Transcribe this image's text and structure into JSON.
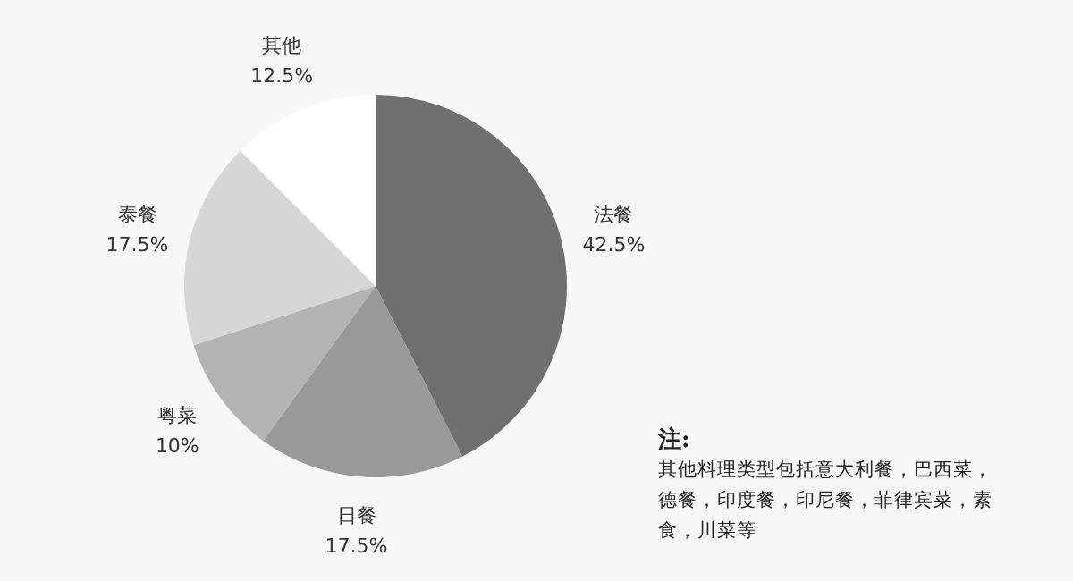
{
  "chart_data": {
    "type": "pie",
    "categories": [
      "法餐",
      "日餐",
      "粤菜",
      "泰餐",
      "其他"
    ],
    "values": [
      42.5,
      17.5,
      10,
      17.5,
      12.5
    ],
    "value_labels": [
      "42.5%",
      "17.5%",
      "10%",
      "17.5%",
      "12.5%"
    ],
    "colors": [
      "#707070",
      "#999999",
      "#b3b3b3",
      "#d6d6d6",
      "#ffffff"
    ],
    "annotations": [
      "注:",
      "其他料理类型包括意大利餐，巴西菜，德餐，印度餐，印尼餐，菲律宾菜，素食，川菜等"
    ]
  }
}
